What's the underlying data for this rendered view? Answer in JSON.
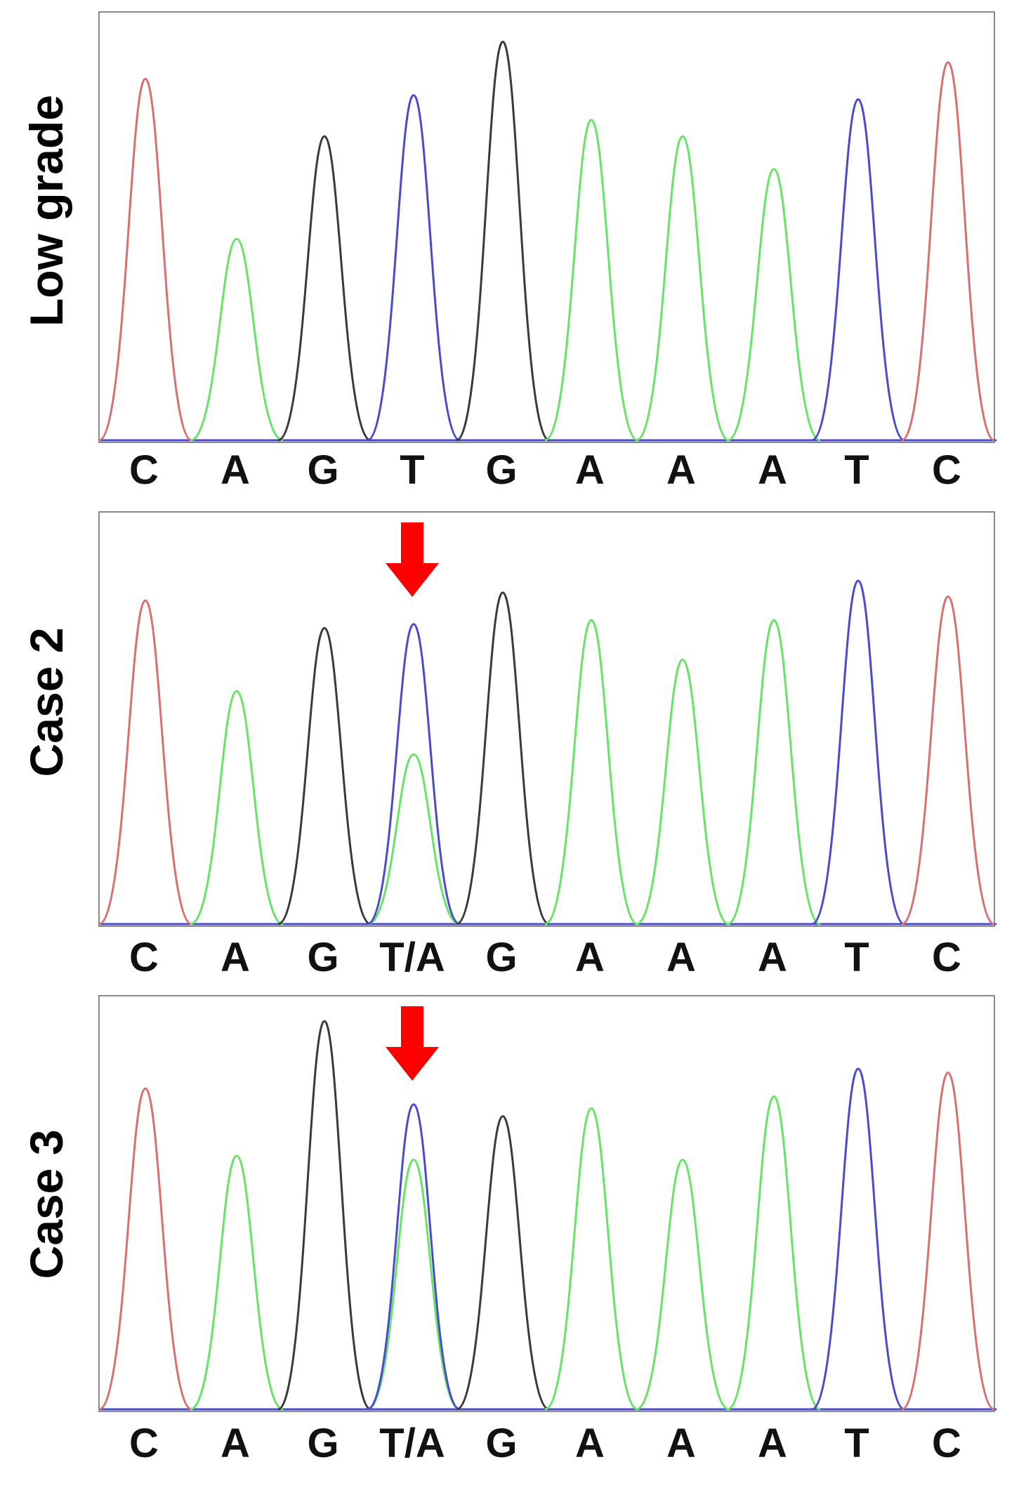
{
  "colors": {
    "C": "#d87070",
    "A": "#66e466",
    "G": "#3a3a3a",
    "T": "#4a4ad0",
    "arrow": "#ff0000",
    "frame": "#8a8a8a"
  },
  "panels": [
    {
      "label": "Low grade",
      "bases": [
        "C",
        "A",
        "G",
        "T",
        "G",
        "A",
        "A",
        "A",
        "T",
        "C"
      ],
      "peaks": [
        {
          "base": "C",
          "h": 0.88
        },
        {
          "base": "A",
          "h": 0.49
        },
        {
          "base": "G",
          "h": 0.74
        },
        {
          "base": "T",
          "h": 0.84
        },
        {
          "base": "G",
          "h": 0.97
        },
        {
          "base": "A",
          "h": 0.78
        },
        {
          "base": "A",
          "h": 0.74
        },
        {
          "base": "A",
          "h": 0.66
        },
        {
          "base": "T",
          "h": 0.83
        },
        {
          "base": "C",
          "h": 0.92
        }
      ],
      "mutation_marker": false
    },
    {
      "label": "Case 2",
      "bases": [
        "C",
        "A",
        "G",
        "T/A",
        "G",
        "A",
        "A",
        "A",
        "T",
        "C"
      ],
      "peaks": [
        {
          "base": "C",
          "h": 0.82
        },
        {
          "base": "A",
          "h": 0.59
        },
        {
          "base": "G",
          "h": 0.75
        },
        {
          "base": "T",
          "h": 0.76,
          "secondary": {
            "base": "A",
            "h": 0.43
          }
        },
        {
          "base": "G",
          "h": 0.84
        },
        {
          "base": "A",
          "h": 0.77
        },
        {
          "base": "A",
          "h": 0.67
        },
        {
          "base": "A",
          "h": 0.77
        },
        {
          "base": "T",
          "h": 0.87
        },
        {
          "base": "C",
          "h": 0.83
        }
      ],
      "mutation_marker": true
    },
    {
      "label": "Case 3",
      "bases": [
        "C",
        "A",
        "G",
        "T/A",
        "G",
        "A",
        "A",
        "A",
        "T",
        "C"
      ],
      "peaks": [
        {
          "base": "C",
          "h": 0.81
        },
        {
          "base": "A",
          "h": 0.64
        },
        {
          "base": "G",
          "h": 0.98
        },
        {
          "base": "T",
          "h": 0.77,
          "secondary": {
            "base": "A",
            "h": 0.63
          }
        },
        {
          "base": "G",
          "h": 0.74
        },
        {
          "base": "A",
          "h": 0.76
        },
        {
          "base": "A",
          "h": 0.63
        },
        {
          "base": "A",
          "h": 0.79
        },
        {
          "base": "T",
          "h": 0.86
        },
        {
          "base": "C",
          "h": 0.85
        }
      ],
      "mutation_marker": true
    }
  ]
}
